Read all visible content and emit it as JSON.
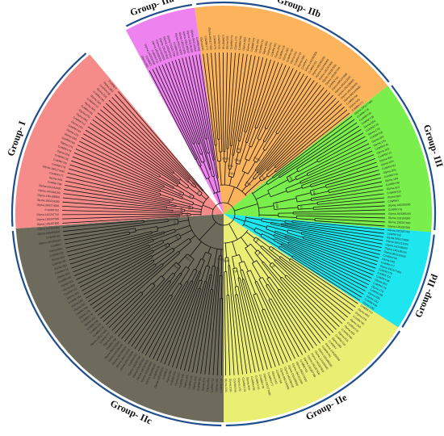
{
  "figure": {
    "groups": [
      {
        "id": "IIa",
        "label": "Group- IIa",
        "color": "#ee82ee",
        "start_deg": -28,
        "end_deg": -8,
        "label_deg": -19,
        "leaves": 16
      },
      {
        "id": "IIb",
        "label": "Group- IIb",
        "color": "#fbb45c",
        "start_deg": -8,
        "end_deg": 52,
        "label_deg": 20,
        "leaves": 42
      },
      {
        "id": "III",
        "label": "Group- III",
        "color": "#7aee4a",
        "start_deg": 52,
        "end_deg": 95,
        "label_deg": 72,
        "leaves": 30
      },
      {
        "id": "IId",
        "label": "Group- IId",
        "color": "#1ee6ee",
        "start_deg": 95,
        "end_deg": 123,
        "label_deg": 112,
        "leaves": 22
      },
      {
        "id": "IIe",
        "label": "Group- IIe",
        "color": "#eaee72",
        "start_deg": 123,
        "end_deg": 180,
        "label_deg": 152,
        "leaves": 38
      },
      {
        "id": "IIc",
        "label": "Group- IIc",
        "color": "#6e6a5c",
        "start_deg": 180,
        "end_deg": 266,
        "label_deg": 205,
        "leaves": 58
      },
      {
        "id": "I",
        "label": "Group- I",
        "color": "#f68c8a",
        "start_deg": 266,
        "end_deg": 320,
        "label_deg": 290,
        "leaves": 36
      }
    ],
    "leaf_label_samples": [
      "Glyma.08G",
      "CcWRKY",
      "Glyma.14G200200",
      "CcWRKY01",
      "Glyma.18G085200",
      "Glyma.11G163300",
      "Glyma.13G267600",
      "Glyma.13G267500",
      "Glyma.13G267700",
      "CcWRKY62",
      "Glyma.09G274000",
      "Glyma.18G213200",
      "Glyma.15G186500",
      "Glyma.14G186100",
      "Glyma.06G142000",
      "CcWRKY58",
      "Glyma.04G",
      "CcWRKY77",
      "Glyma.19G177400",
      "CcWRKY78",
      "CcWRKY25",
      "CcWRKY38",
      "Glyma.02G",
      "CcWRKY76",
      "Glyma.17G",
      "CcWRKY66",
      "Glyma.03G",
      "Glyma.12G",
      "CcWRKY44",
      "Glyma.10G",
      "CcWRKY12",
      "Glyma.05G",
      "Glyma.07G",
      "CcWRKY81",
      "Glyma.20G",
      "CcWRKY15",
      "Glyma.16G",
      "CcWRKY90",
      "Glyma.01G",
      "CcWRKY33"
    ],
    "support_samples": [
      "1000",
      "994",
      "1000",
      "874",
      "0.935",
      "912",
      "1000",
      "967",
      "0.876",
      "1000"
    ]
  }
}
